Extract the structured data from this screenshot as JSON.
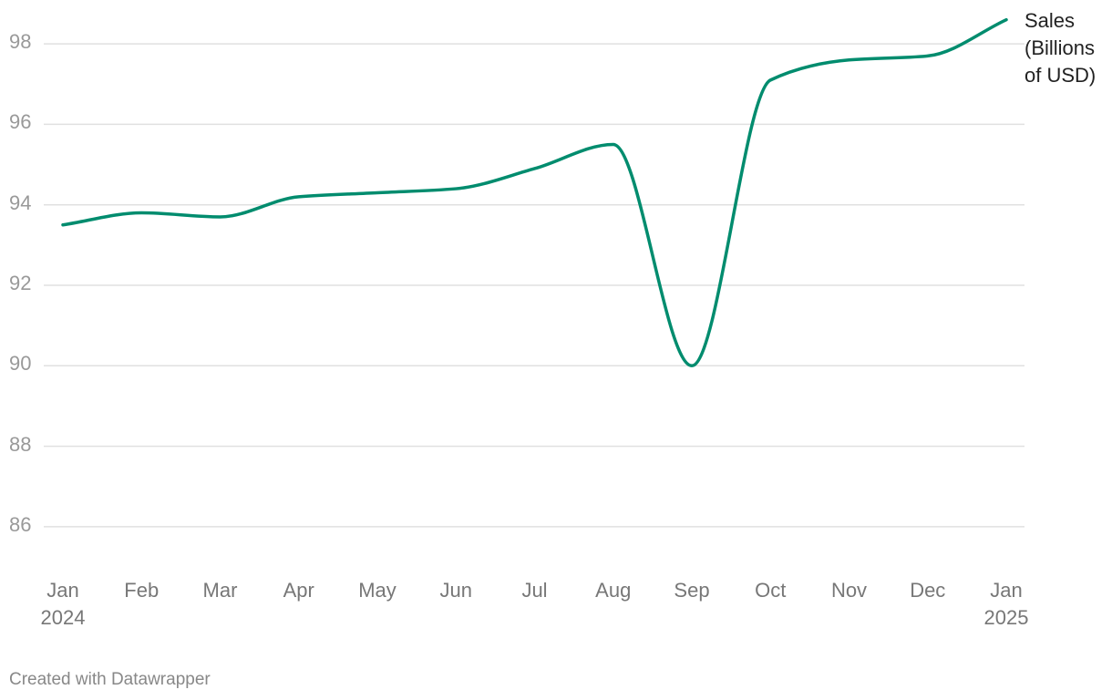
{
  "chart_data": {
    "type": "line",
    "categories": [
      "Jan 2024",
      "Feb",
      "Mar",
      "Apr",
      "May",
      "Jun",
      "Jul",
      "Aug",
      "Sep",
      "Oct",
      "Nov",
      "Dec",
      "Jan 2025"
    ],
    "series": [
      {
        "name": "Sales (Billions of USD)",
        "color": "#008c6e",
        "values": [
          93.5,
          93.8,
          93.7,
          94.2,
          94.3,
          94.4,
          94.9,
          95.5,
          90.0,
          97.1,
          97.6,
          97.7,
          98.6
        ]
      }
    ],
    "ylim": [
      85,
      99
    ],
    "yticks": [
      86,
      88,
      90,
      92,
      94,
      96,
      98
    ],
    "grid": true,
    "credit": "Created with Datawrapper"
  }
}
